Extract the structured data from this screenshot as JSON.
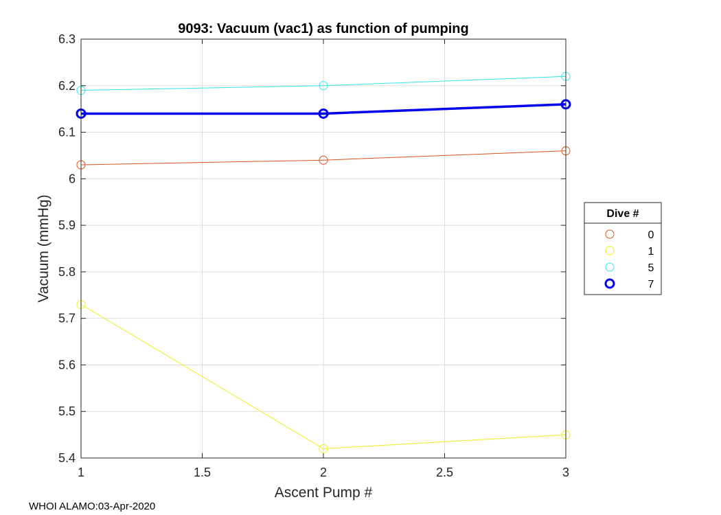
{
  "chart_data": {
    "type": "line",
    "title": "9093: Vacuum (vac1) as function of pumping",
    "xlabel": "Ascent Pump #",
    "ylabel": "Vacuum (mmHg)",
    "xlim": [
      1,
      3
    ],
    "ylim": [
      5.4,
      6.3
    ],
    "xticks": [
      1,
      1.5,
      2,
      2.5,
      3
    ],
    "xtick_labels": [
      "1",
      "1.5",
      "2",
      "2.5",
      "3"
    ],
    "yticks": [
      5.4,
      5.5,
      5.6,
      5.7,
      5.8,
      5.9,
      6,
      6.1,
      6.2,
      6.3
    ],
    "ytick_labels": [
      "5.4",
      "5.5",
      "5.6",
      "5.7",
      "5.8",
      "5.9",
      "6",
      "6.1",
      "6.2",
      "6.3"
    ],
    "grid": true,
    "legend_title": "Dive #",
    "legend_position": "outside-right",
    "x": [
      1,
      2,
      3
    ],
    "series": [
      {
        "name": "0",
        "values": [
          6.03,
          6.04,
          6.06
        ],
        "color": "#D95319",
        "width": 1
      },
      {
        "name": "1",
        "values": [
          5.73,
          5.42,
          5.45
        ],
        "color": "#EDED22",
        "width": 1
      },
      {
        "name": "5",
        "values": [
          6.19,
          6.2,
          6.22
        ],
        "color": "#33E5E5",
        "width": 1
      },
      {
        "name": "7",
        "values": [
          6.14,
          6.14,
          6.16
        ],
        "color": "#0000EE",
        "width": 3.5
      }
    ]
  },
  "footer": "WHOI ALAMO:03-Apr-2020"
}
